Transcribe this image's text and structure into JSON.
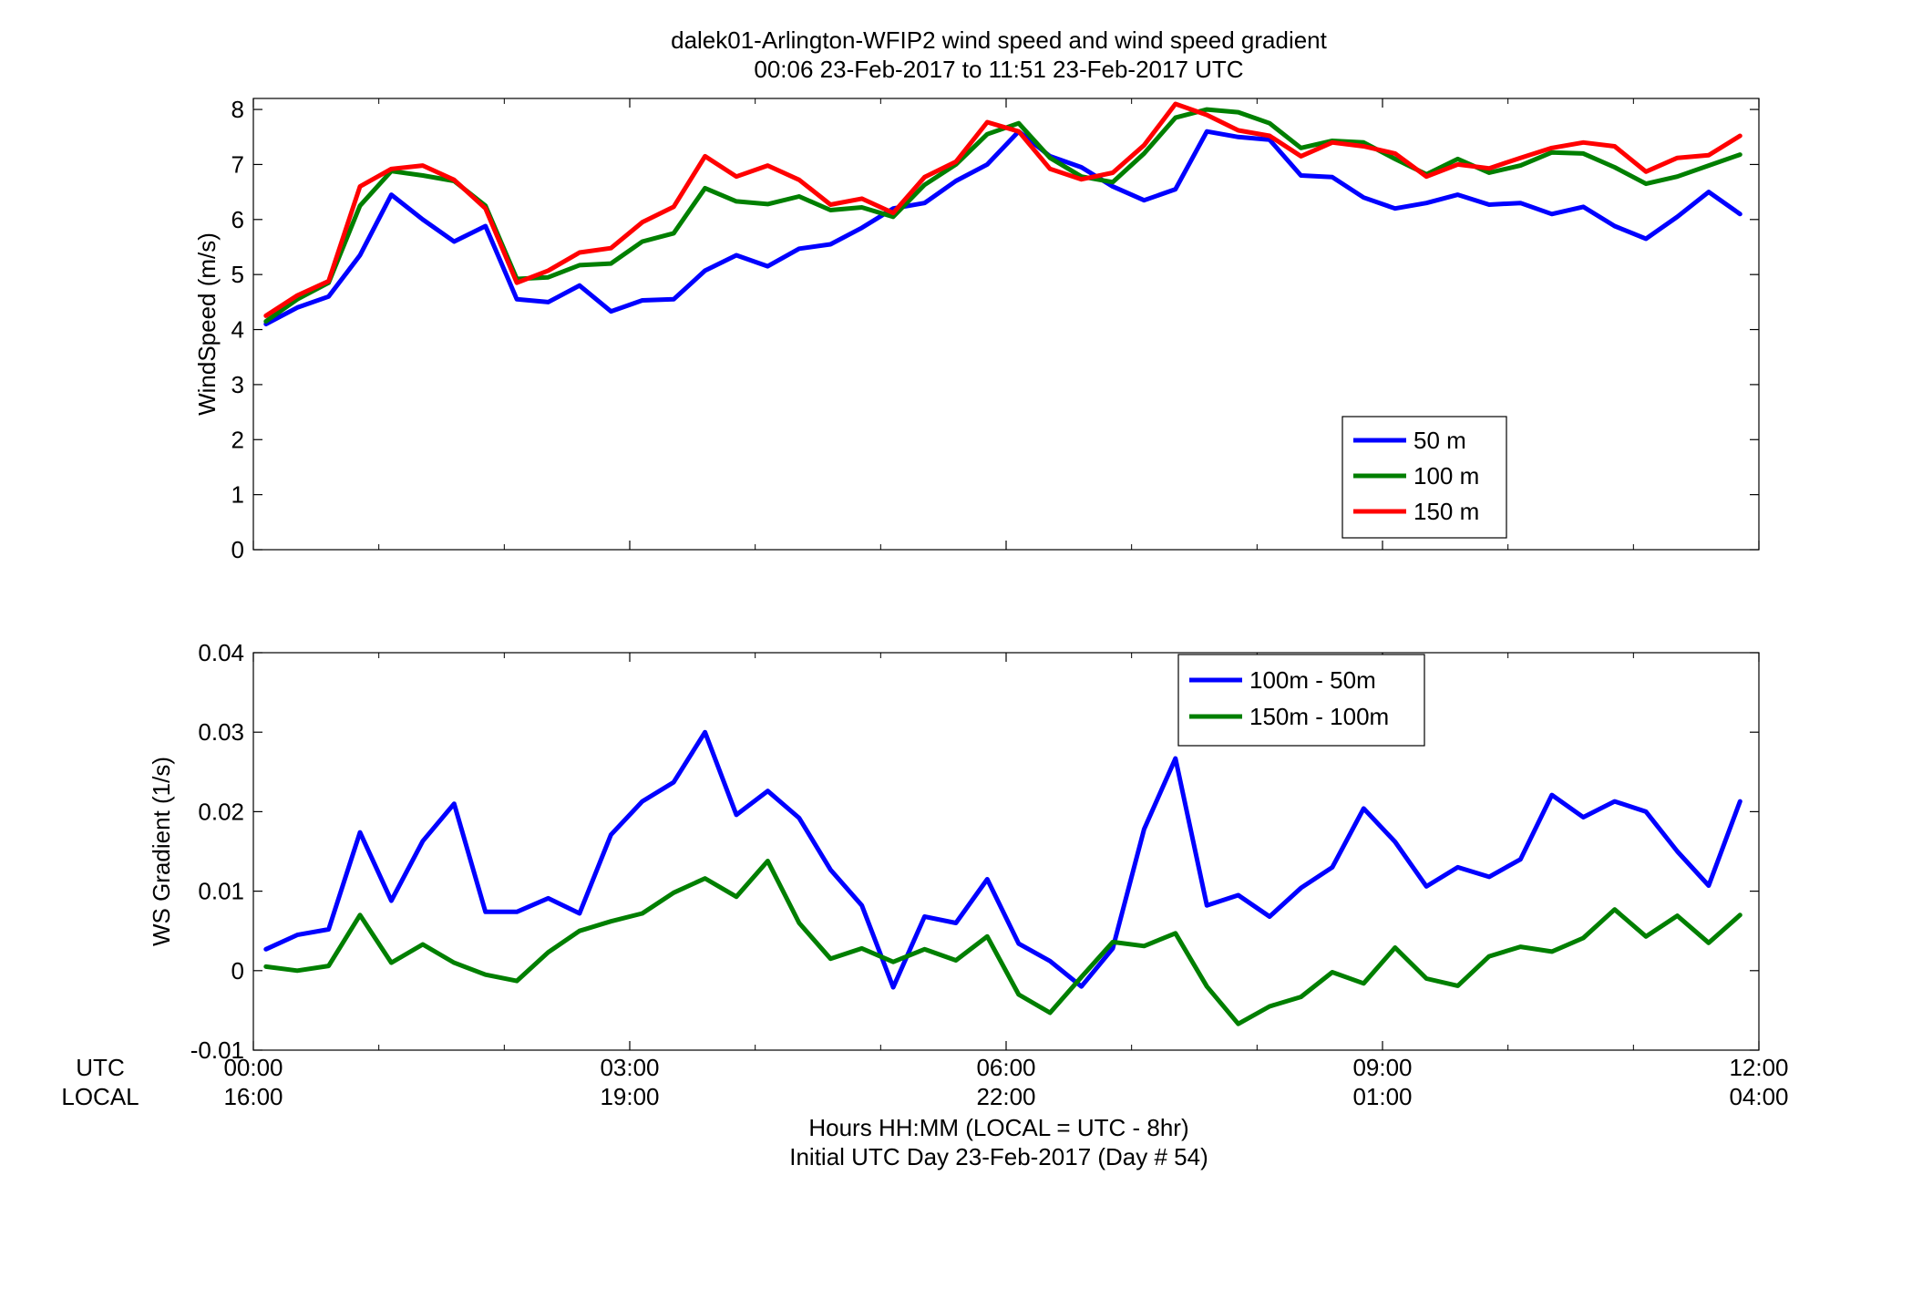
{
  "figure": {
    "title_line1": "dalek01-Arlington-WFIP2  wind speed and wind speed gradient",
    "title_line2": "00:06 23-Feb-2017 to 11:51 23-Feb-2017  UTC",
    "row_label_utc": "UTC",
    "row_label_local": "LOCAL",
    "xlabel_line1": "Hours HH:MM  (LOCAL = UTC - 8hr)",
    "xlabel_line2": "Initial UTC Day 23-Feb-2017 (Day # 54)"
  },
  "colors": {
    "blue": "#0000ff",
    "green": "#007f00",
    "red": "#ff0000"
  },
  "chart_data": [
    {
      "type": "line",
      "title": "",
      "xlabel": "",
      "ylabel": "WindSpeed (m/s)",
      "xlim": [
        0,
        12
      ],
      "ylim": [
        0,
        8.2
      ],
      "yticks": [
        0,
        1,
        2,
        3,
        4,
        5,
        6,
        7,
        8
      ],
      "xticks": [
        0,
        3,
        6,
        9,
        12
      ],
      "xtick_labels_utc": [
        "00:00",
        "03:00",
        "06:00",
        "09:00",
        "12:00"
      ],
      "xtick_labels_local": [
        "16:00",
        "19:00",
        "22:00",
        "01:00",
        "04:00"
      ],
      "grid": false,
      "legend_position": "lower-right",
      "x": [
        0.1,
        0.35,
        0.6,
        0.85,
        1.1,
        1.35,
        1.6,
        1.85,
        2.1,
        2.35,
        2.6,
        2.85,
        3.1,
        3.35,
        3.6,
        3.85,
        4.1,
        4.35,
        4.6,
        4.85,
        5.1,
        5.35,
        5.6,
        5.85,
        6.1,
        6.35,
        6.6,
        6.85,
        7.1,
        7.35,
        7.6,
        7.85,
        8.1,
        8.35,
        8.6,
        8.85,
        9.1,
        9.35,
        9.6,
        9.85,
        10.1,
        10.35,
        10.6,
        10.85,
        11.1,
        11.35,
        11.6,
        11.85
      ],
      "series": [
        {
          "name": "50 m",
          "color": "#0000ff",
          "values": [
            4.1,
            4.4,
            4.6,
            5.35,
            6.45,
            6.0,
            5.6,
            5.88,
            4.55,
            4.5,
            4.8,
            4.33,
            4.53,
            4.55,
            5.07,
            5.35,
            5.15,
            5.47,
            5.55,
            5.85,
            6.2,
            6.3,
            6.7,
            7.0,
            7.6,
            7.15,
            6.95,
            6.6,
            6.35,
            6.55,
            7.6,
            7.5,
            7.45,
            6.8,
            6.77,
            6.4,
            6.2,
            6.3,
            6.45,
            6.27,
            6.3,
            6.1,
            6.23,
            5.88,
            5.65,
            6.05,
            6.5,
            6.1
          ]
        },
        {
          "name": "100 m",
          "color": "#007f00",
          "values": [
            4.15,
            4.55,
            4.85,
            6.25,
            6.88,
            6.8,
            6.7,
            6.25,
            4.92,
            4.95,
            5.17,
            5.2,
            5.6,
            5.75,
            6.57,
            6.33,
            6.28,
            6.42,
            6.17,
            6.22,
            6.05,
            6.63,
            7.0,
            7.55,
            7.75,
            7.12,
            6.78,
            6.68,
            7.2,
            7.85,
            8.0,
            7.95,
            7.75,
            7.3,
            7.43,
            7.4,
            7.1,
            6.82,
            7.1,
            6.85,
            6.98,
            7.22,
            7.2,
            6.95,
            6.65,
            6.78,
            6.98,
            7.18
          ]
        },
        {
          "name": "150 m",
          "color": "#ff0000",
          "values": [
            4.25,
            4.62,
            4.88,
            6.6,
            6.92,
            6.98,
            6.72,
            6.2,
            4.85,
            5.07,
            5.4,
            5.48,
            5.95,
            6.23,
            7.15,
            6.78,
            6.98,
            6.72,
            6.27,
            6.38,
            6.12,
            6.77,
            7.05,
            7.77,
            7.6,
            6.92,
            6.73,
            6.85,
            7.35,
            8.1,
            7.9,
            7.62,
            7.52,
            7.15,
            7.4,
            7.33,
            7.2,
            6.78,
            7.0,
            6.93,
            7.12,
            7.3,
            7.4,
            7.33,
            6.87,
            7.12,
            7.17,
            7.52
          ]
        }
      ]
    },
    {
      "type": "line",
      "title": "",
      "xlabel": "",
      "ylabel": "WS Gradient (1/s)",
      "xlim": [
        0,
        12
      ],
      "ylim": [
        -0.01,
        0.04
      ],
      "yticks": [
        -0.01,
        0,
        0.01,
        0.02,
        0.03,
        0.04
      ],
      "ytick_labels": [
        "-0.01",
        "0",
        "0.01",
        "0.02",
        "0.03",
        "0.04"
      ],
      "xticks": [
        0,
        3,
        6,
        9,
        12
      ],
      "grid": false,
      "legend_position": "top-right",
      "x": [
        0.1,
        0.35,
        0.6,
        0.85,
        1.1,
        1.35,
        1.6,
        1.85,
        2.1,
        2.35,
        2.6,
        2.85,
        3.1,
        3.35,
        3.6,
        3.85,
        4.1,
        4.35,
        4.6,
        4.85,
        5.1,
        5.35,
        5.6,
        5.85,
        6.1,
        6.35,
        6.6,
        6.85,
        7.1,
        7.35,
        7.6,
        7.85,
        8.1,
        8.35,
        8.6,
        8.85,
        9.1,
        9.35,
        9.6,
        9.85,
        10.1,
        10.35,
        10.6,
        10.85,
        11.1,
        11.35,
        11.6,
        11.85
      ],
      "series": [
        {
          "name": "100m - 50m",
          "color": "#0000ff",
          "values": [
            0.0027,
            0.0045,
            0.0052,
            0.0174,
            0.0088,
            0.0163,
            0.021,
            0.0074,
            0.0074,
            0.0091,
            0.0072,
            0.0171,
            0.0213,
            0.0237,
            0.03,
            0.0196,
            0.0226,
            0.0192,
            0.0127,
            0.0082,
            -0.0021,
            0.0068,
            0.006,
            0.0115,
            0.0034,
            0.0012,
            -0.002,
            0.0028,
            0.0178,
            0.0267,
            0.0082,
            0.0095,
            0.0068,
            0.0104,
            0.013,
            0.0204,
            0.0162,
            0.0106,
            0.013,
            0.0118,
            0.014,
            0.0221,
            0.0193,
            0.0213,
            0.02,
            0.015,
            0.0107,
            0.0213
          ]
        },
        {
          "name": "150m - 100m",
          "color": "#007f00",
          "values": [
            0.0005,
            0.0,
            0.0006,
            0.007,
            0.001,
            0.0033,
            0.001,
            -0.0005,
            -0.0013,
            0.0023,
            0.005,
            0.0062,
            0.0072,
            0.0098,
            0.0116,
            0.0093,
            0.0138,
            0.006,
            0.0015,
            0.0028,
            0.0011,
            0.0027,
            0.0013,
            0.0043,
            -0.003,
            -0.0053,
            -0.0008,
            0.0036,
            0.0031,
            0.0047,
            -0.002,
            -0.0067,
            -0.0045,
            -0.0033,
            -0.0002,
            -0.0016,
            0.0029,
            -0.001,
            -0.0019,
            0.0018,
            0.003,
            0.0024,
            0.0041,
            0.0077,
            0.0043,
            0.0069,
            0.0035,
            0.007
          ]
        }
      ]
    }
  ]
}
